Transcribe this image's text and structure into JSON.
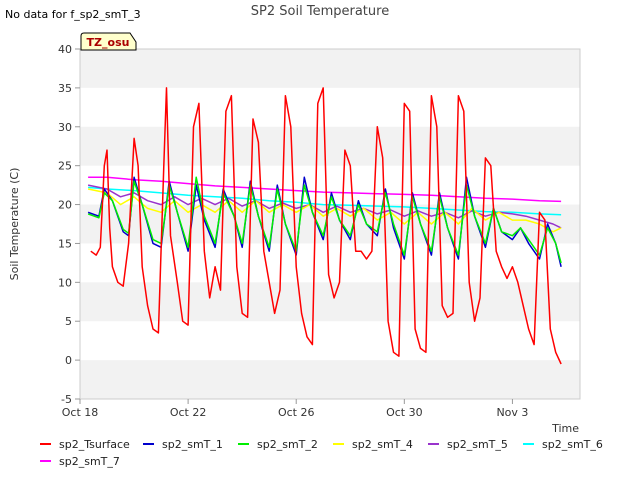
{
  "note": "No data for f_sp2_smT_3",
  "badge": "TZ_osu",
  "chart_data": {
    "type": "line",
    "title": "SP2 Soil Temperature",
    "xlabel": "Time",
    "ylabel": "Soil Temperature (C)",
    "ylim": [
      -5,
      40
    ],
    "xlim": [
      0,
      18.5
    ],
    "x_unit": "days since Oct 18",
    "yticks": [
      -5,
      0,
      5,
      10,
      15,
      20,
      25,
      30,
      35,
      40
    ],
    "yticklabels": [
      "-5",
      "0",
      "5",
      "10",
      "15",
      "20",
      "25",
      "30",
      "35",
      "40"
    ],
    "xticks": [
      0,
      4,
      8,
      12,
      16
    ],
    "xticklabels": [
      "Oct 18",
      "Oct 22",
      "Oct 26",
      "Oct 30",
      "Nov 3"
    ],
    "grid": "alternating horizontal bands",
    "series": [
      {
        "name": "sp2_Tsurface",
        "color": "#ff0000",
        "x": [
          0.4,
          0.6,
          0.75,
          0.9,
          1.0,
          1.1,
          1.2,
          1.4,
          1.6,
          1.8,
          2.0,
          2.15,
          2.3,
          2.5,
          2.7,
          2.9,
          3.1,
          3.2,
          3.35,
          3.6,
          3.8,
          4.0,
          4.2,
          4.4,
          4.6,
          4.8,
          5.0,
          5.2,
          5.4,
          5.6,
          5.8,
          6.0,
          6.2,
          6.4,
          6.6,
          6.8,
          7.0,
          7.2,
          7.4,
          7.6,
          7.8,
          8.0,
          8.2,
          8.4,
          8.6,
          8.8,
          9.0,
          9.2,
          9.4,
          9.6,
          9.8,
          10.0,
          10.2,
          10.4,
          10.6,
          10.8,
          11.0,
          11.2,
          11.4,
          11.6,
          11.8,
          12.0,
          12.2,
          12.4,
          12.6,
          12.8,
          13.0,
          13.2,
          13.4,
          13.6,
          13.8,
          14.0,
          14.2,
          14.4,
          14.6,
          14.8,
          15.0,
          15.2,
          15.4,
          15.6,
          15.8,
          16.0,
          16.2,
          16.4,
          16.6,
          16.8,
          17.0,
          17.2,
          17.4,
          17.6,
          17.8
        ],
        "values": [
          14.0,
          13.5,
          14.5,
          25.0,
          27.0,
          17.0,
          12.0,
          10.0,
          9.5,
          15.0,
          28.5,
          25.0,
          12.0,
          7.0,
          4.0,
          3.5,
          25.0,
          35.0,
          16.0,
          10.0,
          5.0,
          4.5,
          30.0,
          33.0,
          14.0,
          8.0,
          12.0,
          9.0,
          32.0,
          34.0,
          12.0,
          6.0,
          5.5,
          31.0,
          28.0,
          14.0,
          10.0,
          6.0,
          9.0,
          34.0,
          30.0,
          12.0,
          6.0,
          3.0,
          2.0,
          33.0,
          35.0,
          11.0,
          8.0,
          10.0,
          27.0,
          25.0,
          14.0,
          14.0,
          13.0,
          14.0,
          30.0,
          26.0,
          5.0,
          1.0,
          0.5,
          33.0,
          32.0,
          4.0,
          1.5,
          1.0,
          34.0,
          30.0,
          7.0,
          5.5,
          6.0,
          34.0,
          32.0,
          10.0,
          5.0,
          8.0,
          26.0,
          25.0,
          14.0,
          12.0,
          10.5,
          12.0,
          10.0,
          7.0,
          4.0,
          2.0,
          19.0,
          18.0,
          4.0,
          1.0,
          -0.5
        ]
      },
      {
        "name": "sp2_smT_1",
        "color": "#0000cc",
        "x": [
          0.3,
          0.7,
          0.9,
          1.2,
          1.6,
          1.8,
          2.0,
          2.3,
          2.7,
          3.0,
          3.3,
          3.6,
          4.0,
          4.3,
          4.6,
          5.0,
          5.3,
          5.7,
          6.0,
          6.3,
          6.6,
          7.0,
          7.3,
          7.6,
          8.0,
          8.3,
          8.6,
          9.0,
          9.3,
          9.6,
          10.0,
          10.3,
          10.6,
          11.0,
          11.3,
          11.6,
          12.0,
          12.3,
          12.6,
          13.0,
          13.3,
          13.6,
          14.0,
          14.3,
          14.6,
          15.0,
          15.3,
          15.6,
          16.0,
          16.3,
          16.6,
          17.0,
          17.3,
          17.6,
          17.8
        ],
        "values": [
          19.0,
          18.5,
          22.0,
          20.5,
          16.5,
          16.0,
          23.5,
          20.0,
          15.0,
          14.5,
          23.0,
          19.0,
          14.0,
          22.5,
          18.0,
          14.5,
          22.0,
          18.5,
          14.5,
          23.0,
          18.5,
          14.0,
          22.5,
          17.5,
          13.5,
          23.5,
          19.0,
          15.5,
          21.5,
          18.0,
          15.5,
          20.5,
          17.5,
          16.0,
          22.0,
          17.0,
          13.0,
          21.5,
          17.5,
          13.5,
          21.5,
          17.0,
          13.0,
          23.5,
          18.5,
          14.5,
          19.5,
          16.5,
          15.5,
          17.0,
          15.0,
          13.0,
          17.5,
          15.0,
          12.0
        ]
      },
      {
        "name": "sp2_smT_2",
        "color": "#00ee00",
        "x": [
          0.3,
          0.7,
          0.9,
          1.2,
          1.6,
          1.8,
          2.0,
          2.3,
          2.7,
          3.0,
          3.3,
          3.6,
          4.0,
          4.3,
          4.6,
          5.0,
          5.3,
          5.7,
          6.0,
          6.3,
          6.6,
          7.0,
          7.3,
          7.6,
          8.0,
          8.3,
          8.6,
          9.0,
          9.3,
          9.6,
          10.0,
          10.3,
          10.6,
          11.0,
          11.3,
          11.6,
          12.0,
          12.3,
          12.6,
          13.0,
          13.3,
          13.6,
          14.0,
          14.3,
          14.6,
          15.0,
          15.3,
          15.6,
          16.0,
          16.3,
          16.6,
          17.0,
          17.3,
          17.6,
          17.8
        ],
        "values": [
          18.8,
          18.3,
          21.5,
          20.5,
          16.8,
          16.3,
          23.0,
          20.0,
          15.5,
          15.0,
          22.5,
          19.0,
          14.5,
          23.5,
          18.5,
          15.0,
          21.5,
          18.5,
          15.0,
          22.5,
          18.5,
          14.5,
          22.0,
          17.5,
          14.0,
          22.5,
          19.0,
          16.0,
          21.0,
          18.0,
          16.0,
          20.0,
          17.5,
          16.5,
          21.5,
          17.5,
          13.5,
          21.0,
          17.5,
          14.0,
          21.0,
          17.0,
          13.5,
          22.5,
          18.5,
          15.0,
          19.5,
          16.5,
          16.0,
          17.0,
          15.5,
          13.5,
          17.0,
          15.0,
          12.5
        ]
      },
      {
        "name": "sp2_smT_4",
        "color": "#ffff00",
        "x": [
          0.3,
          1.0,
          1.5,
          2.0,
          2.5,
          3.0,
          3.5,
          4.0,
          4.5,
          5.0,
          5.5,
          6.0,
          6.5,
          7.0,
          7.5,
          8.0,
          8.5,
          9.0,
          9.5,
          10.0,
          10.5,
          11.0,
          11.5,
          12.0,
          12.5,
          13.0,
          13.5,
          14.0,
          14.5,
          15.0,
          15.5,
          16.0,
          16.5,
          17.0,
          17.5,
          17.8
        ],
        "values": [
          22.0,
          21.5,
          20.0,
          21.0,
          19.5,
          19.0,
          20.5,
          19.0,
          20.0,
          19.0,
          20.5,
          19.0,
          20.5,
          19.0,
          20.0,
          19.0,
          20.0,
          18.5,
          19.5,
          18.5,
          19.5,
          18.0,
          19.0,
          17.5,
          19.0,
          17.5,
          19.0,
          17.5,
          19.5,
          18.0,
          19.0,
          18.0,
          18.0,
          17.5,
          16.5,
          17.0
        ]
      },
      {
        "name": "sp2_smT_5",
        "color": "#9933cc",
        "x": [
          0.3,
          1.0,
          1.5,
          2.0,
          2.5,
          3.0,
          3.5,
          4.0,
          4.5,
          5.0,
          5.5,
          6.0,
          6.5,
          7.0,
          7.5,
          8.0,
          8.5,
          9.0,
          9.5,
          10.0,
          10.5,
          11.0,
          11.5,
          12.0,
          12.5,
          13.0,
          13.5,
          14.0,
          14.5,
          15.0,
          15.5,
          16.0,
          16.5,
          17.0,
          17.5,
          17.8
        ],
        "values": [
          22.5,
          22.0,
          21.0,
          21.5,
          20.5,
          20.0,
          21.0,
          20.0,
          20.8,
          20.0,
          20.8,
          19.8,
          20.5,
          19.5,
          20.2,
          19.5,
          20.0,
          19.0,
          19.8,
          19.0,
          19.5,
          18.8,
          19.3,
          18.5,
          19.2,
          18.5,
          19.0,
          18.3,
          19.2,
          18.5,
          19.0,
          18.8,
          18.5,
          18.0,
          17.5,
          17.0
        ]
      },
      {
        "name": "sp2_smT_6",
        "color": "#00ffff",
        "x": [
          0.3,
          1.0,
          2.0,
          3.0,
          4.0,
          5.0,
          6.0,
          7.0,
          8.0,
          9.0,
          10.0,
          11.0,
          12.0,
          13.0,
          14.0,
          15.0,
          16.0,
          17.0,
          17.8
        ],
        "values": [
          22.2,
          22.0,
          21.8,
          21.5,
          21.2,
          21.0,
          20.8,
          20.5,
          20.3,
          20.0,
          19.9,
          19.8,
          19.7,
          19.5,
          19.3,
          19.1,
          19.0,
          18.8,
          18.7
        ]
      },
      {
        "name": "sp2_smT_7",
        "color": "#ff00ff",
        "x": [
          0.3,
          1.0,
          2.0,
          3.0,
          4.0,
          5.0,
          6.0,
          7.0,
          8.0,
          9.0,
          10.0,
          11.0,
          12.0,
          13.0,
          14.0,
          15.0,
          16.0,
          17.0,
          17.8
        ],
        "values": [
          23.5,
          23.5,
          23.2,
          23.0,
          22.7,
          22.4,
          22.2,
          22.0,
          21.8,
          21.6,
          21.5,
          21.4,
          21.3,
          21.2,
          21.0,
          20.8,
          20.7,
          20.5,
          20.4
        ]
      }
    ]
  }
}
